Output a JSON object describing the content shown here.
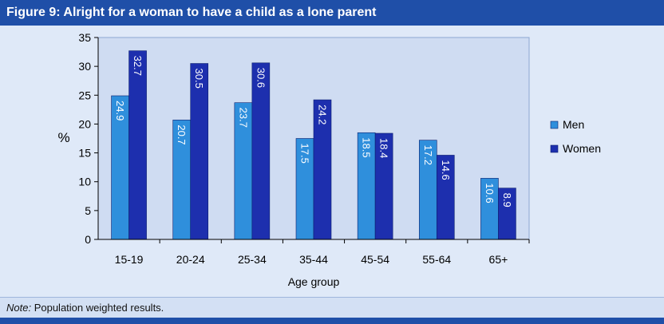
{
  "header": {
    "title": "Figure 9: Alright for a woman to have a child as a lone parent"
  },
  "note": {
    "label": "Note:",
    "text": " Population weighted results."
  },
  "colors": {
    "men": "#2f8fdc",
    "women": "#1d2fae",
    "header": "#1f4fa8"
  },
  "chart_data": {
    "type": "bar",
    "title": "Figure 9: Alright for a woman to have a child as a lone parent",
    "xlabel": "Age group",
    "ylabel": "%",
    "ylim": [
      0,
      35
    ],
    "yticks": [
      0,
      5,
      10,
      15,
      20,
      25,
      30,
      35
    ],
    "categories": [
      "15-19",
      "20-24",
      "25-34",
      "35-44",
      "45-54",
      "55-64",
      "65+"
    ],
    "series": [
      {
        "name": "Men",
        "values": [
          24.9,
          20.7,
          23.7,
          17.5,
          18.5,
          17.2,
          10.6
        ]
      },
      {
        "name": "Women",
        "values": [
          32.7,
          30.5,
          30.6,
          24.2,
          18.4,
          14.6,
          8.9
        ]
      }
    ],
    "legend_position": "right"
  }
}
